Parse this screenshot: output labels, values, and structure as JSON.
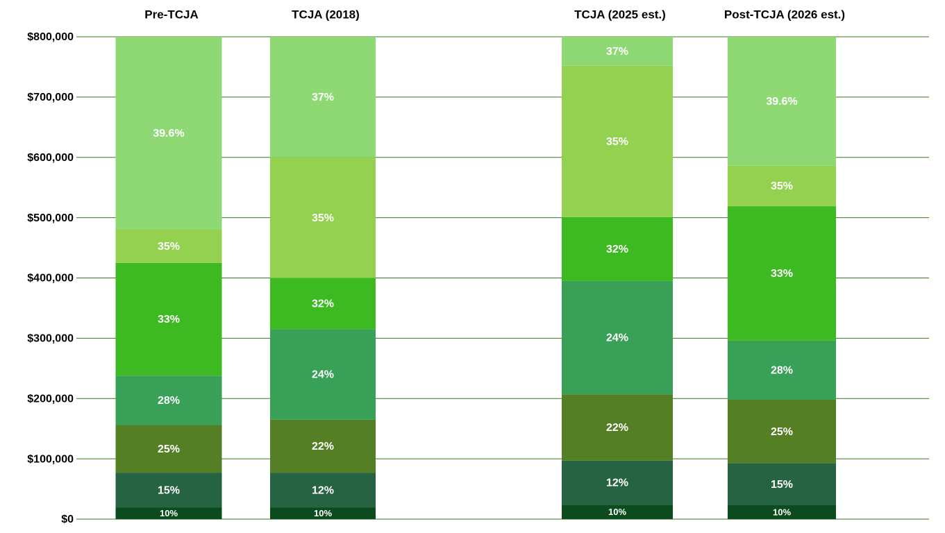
{
  "chart_data": {
    "type": "stacked-bar",
    "categories": [
      "Pre-TCJA",
      "TCJA (2018)",
      "TCJA (2025 est.)",
      "Post-TCJA (2026 est.)"
    ],
    "series": [
      {
        "color": "#0b4b1e",
        "values": [
          19000,
          19000,
          24000,
          23000
        ],
        "labels": [
          "10%",
          "10%",
          "10%",
          "10%"
        ]
      },
      {
        "color": "#256342",
        "values": [
          58000,
          58000,
          73000,
          70000
        ],
        "labels": [
          "15%",
          "12%",
          "12%",
          "15%"
        ]
      },
      {
        "color": "#557f25",
        "values": [
          79000,
          88000,
          110000,
          105000
        ],
        "labels": [
          "25%",
          "22%",
          "22%",
          "25%"
        ]
      },
      {
        "color": "#38a157",
        "values": [
          82000,
          150000,
          188000,
          98000
        ],
        "labels": [
          "28%",
          "24%",
          "24%",
          "28%"
        ]
      },
      {
        "color": "#3dba22",
        "values": [
          187000,
          85000,
          106000,
          223000
        ],
        "labels": [
          "33%",
          "32%",
          "32%",
          "33%"
        ]
      },
      {
        "color": "#95d150",
        "values": [
          55000,
          200000,
          251000,
          67000
        ],
        "labels": [
          "35%",
          "35%",
          "35%",
          "35%"
        ]
      },
      {
        "color": "#8fd975",
        "values": [
          320000,
          200000,
          48000,
          214000
        ],
        "labels": [
          "39.6%",
          "37%",
          "37%",
          "39.6%"
        ]
      }
    ],
    "ylim": [
      0,
      800000
    ],
    "yticks": [
      {
        "value": 0,
        "label": "$0"
      },
      {
        "value": 100000,
        "label": "$100,000"
      },
      {
        "value": 200000,
        "label": "$200,000"
      },
      {
        "value": 300000,
        "label": "$300,000"
      },
      {
        "value": 400000,
        "label": "$400,000"
      },
      {
        "value": 500000,
        "label": "$500,000"
      },
      {
        "value": 600000,
        "label": "$600,000"
      },
      {
        "value": 700000,
        "label": "$700,000"
      },
      {
        "value": 800000,
        "label": "$800,000"
      }
    ],
    "grid": true
  }
}
